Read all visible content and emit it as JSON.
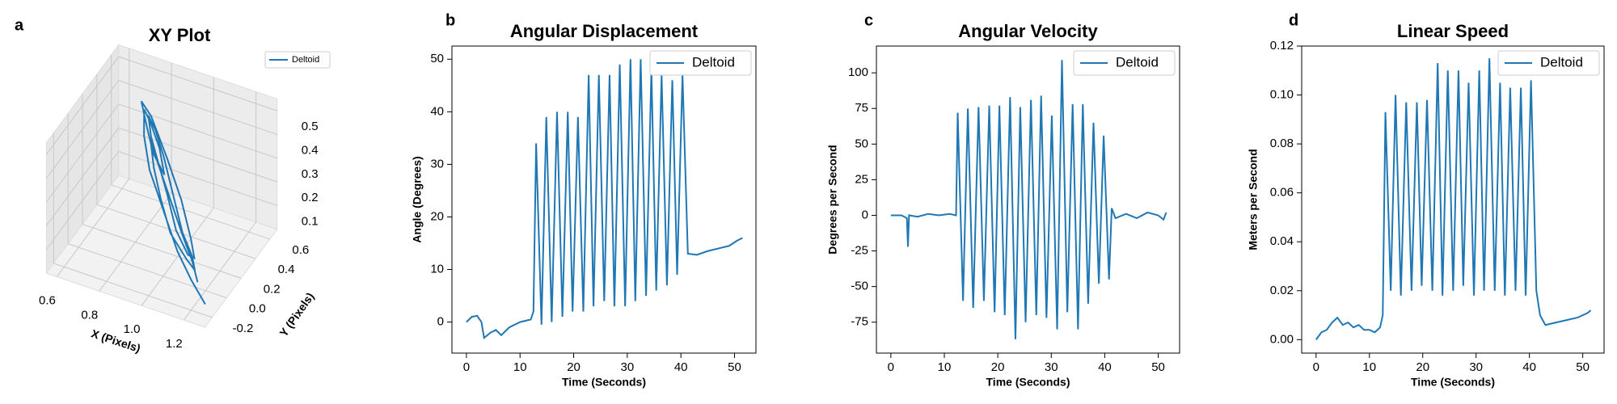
{
  "chart_data": [
    {
      "type": "line3d",
      "panel_label": "a",
      "title": "XY Plot",
      "xlabel": "X (Pixels)",
      "ylabel": "Y (Pixels)",
      "legend": "upper right",
      "series": [
        {
          "name": "Deltoid",
          "color": "#1f77b4",
          "x": [
            1.25,
            1.15,
            1.05,
            0.95,
            0.85,
            0.8,
            0.78,
            0.82,
            0.88,
            0.92,
            0.85,
            0.8,
            0.76,
            0.8,
            0.9,
            1.0,
            1.08,
            1.12,
            1.1,
            1.02,
            0.95,
            0.88,
            0.83,
            0.8,
            0.84,
            0.9,
            0.98,
            1.05,
            1.12,
            1.15,
            1.1,
            1.0,
            0.92,
            0.86,
            0.82,
            0.85,
            0.95,
            1.05,
            1.12,
            1.18
          ],
          "y": [
            -0.15,
            -0.05,
            0.05,
            0.15,
            0.25,
            0.32,
            0.38,
            0.35,
            0.3,
            0.25,
            0.3,
            0.36,
            0.4,
            0.42,
            0.35,
            0.25,
            0.15,
            0.08,
            0.05,
            0.12,
            0.2,
            0.28,
            0.33,
            0.38,
            0.36,
            0.3,
            0.2,
            0.12,
            0.05,
            0.0,
            0.03,
            0.1,
            0.2,
            0.28,
            0.35,
            0.32,
            0.22,
            0.12,
            0.05,
            -0.05
          ],
          "z": [
            0.02,
            0.05,
            0.1,
            0.2,
            0.3,
            0.4,
            0.48,
            0.45,
            0.38,
            0.3,
            0.35,
            0.42,
            0.5,
            0.44,
            0.32,
            0.22,
            0.12,
            0.08,
            0.1,
            0.15,
            0.25,
            0.33,
            0.4,
            0.46,
            0.42,
            0.35,
            0.25,
            0.15,
            0.1,
            0.07,
            0.09,
            0.14,
            0.22,
            0.3,
            0.38,
            0.34,
            0.24,
            0.14,
            0.08,
            0.05
          ]
        }
      ],
      "xlim": [
        0.55,
        1.3
      ],
      "ylim": [
        -0.3,
        0.7
      ],
      "zlim": [
        0,
        0.55
      ],
      "xticks": [
        0.6,
        0.8,
        {
          "value": 1.0,
          "label": "1.0"
        },
        1.2
      ],
      "yticks": [
        -0.2,
        {
          "value": 0.0,
          "label": "0.0"
        },
        0.2,
        0.4,
        0.6
      ],
      "zticks": [
        0.1,
        0.2,
        0.3,
        0.4,
        0.5
      ]
    },
    {
      "type": "line",
      "panel_label": "b",
      "title": "Angular Displacement",
      "xlabel": "Time (Seconds)",
      "ylabel": "Angle (Degrees)",
      "legend": "upper right",
      "x": [
        0,
        1,
        2,
        2.8,
        3.3,
        4.5,
        5.5,
        6.5,
        8,
        10,
        12,
        12.5,
        13.0,
        14.0,
        14.9,
        15.9,
        16.9,
        17.9,
        18.9,
        19.8,
        20.8,
        21.8,
        22.8,
        23.7,
        24.7,
        25.7,
        26.7,
        27.6,
        28.6,
        29.6,
        30.6,
        31.5,
        32.5,
        33.5,
        34.5,
        35.4,
        36.4,
        37.4,
        38.4,
        39.3,
        40.3,
        41.3,
        43,
        45,
        47,
        49,
        50.5,
        51.5
      ],
      "series": [
        {
          "name": "Deltoid",
          "color": "#1f77b4",
          "values": [
            0,
            1,
            1.2,
            0,
            -3,
            -2,
            -1.5,
            -2.5,
            -1,
            0,
            0.5,
            2,
            34,
            -0.5,
            39,
            0,
            40,
            1,
            40,
            2,
            39,
            2,
            47,
            3,
            47,
            4,
            47,
            3,
            49,
            3,
            50,
            4,
            50,
            5,
            48,
            6,
            47,
            7,
            46,
            9,
            47,
            13,
            12.8,
            13.5,
            14,
            14.5,
            15.5,
            16
          ]
        }
      ],
      "xlim": [
        -2.7,
        54.0
      ],
      "ylim": [
        -5.9,
        52.5
      ],
      "xticks": [
        0,
        10,
        20,
        30,
        40,
        50
      ],
      "yticks": [
        0,
        10,
        20,
        30,
        40,
        50
      ]
    },
    {
      "type": "line",
      "panel_label": "c",
      "title": "Angular Velocity",
      "xlabel": "Time (Seconds)",
      "ylabel": "Degrees per Second",
      "legend": "upper right",
      "x": [
        0,
        2,
        3,
        3.2,
        3.4,
        5,
        7,
        9,
        11,
        12.2,
        12.5,
        13.5,
        14.4,
        15.4,
        16.4,
        17.4,
        18.4,
        19.4,
        20.3,
        21.3,
        22.3,
        23.3,
        24.2,
        25.2,
        26.2,
        27.2,
        28.1,
        29.1,
        30.1,
        31.1,
        32.0,
        33.0,
        34.0,
        35.0,
        35.9,
        36.9,
        37.9,
        38.9,
        39.8,
        40.8,
        41.3,
        42,
        44,
        46,
        48,
        50,
        51,
        51.5
      ],
      "series": [
        {
          "name": "Deltoid",
          "color": "#1f77b4",
          "values": [
            0,
            0,
            -2,
            -22,
            0,
            -1,
            1,
            0,
            1,
            0,
            72,
            -60,
            75,
            -65,
            76,
            -60,
            77,
            -68,
            77,
            -70,
            83,
            -87,
            76,
            -75,
            81,
            -70,
            84,
            -72,
            70,
            -80,
            109,
            -68,
            78,
            -80,
            78,
            -62,
            65,
            -48,
            56,
            -45,
            5,
            -2,
            1,
            -2,
            2,
            0,
            -3,
            2
          ]
        }
      ],
      "xlim": [
        -2.7,
        54.0
      ],
      "ylim": [
        -96.7,
        118.8
      ],
      "xticks": [
        0,
        10,
        20,
        30,
        40,
        50
      ],
      "yticks": [
        -75,
        -50,
        -25,
        0,
        25,
        50,
        75,
        100
      ]
    },
    {
      "type": "line",
      "panel_label": "d",
      "title": "Linear Speed",
      "xlabel": "Time (Seconds)",
      "ylabel": "Meters per Second",
      "legend": "upper right",
      "x": [
        0,
        1,
        2,
        3,
        4,
        5,
        6,
        7,
        8,
        9,
        10,
        11,
        12,
        12.5,
        13.0,
        14.0,
        14.9,
        15.9,
        16.9,
        17.9,
        18.9,
        19.8,
        20.8,
        21.8,
        22.8,
        23.7,
        24.7,
        25.7,
        26.7,
        27.6,
        28.6,
        29.6,
        30.6,
        31.5,
        32.5,
        33.5,
        34.5,
        35.4,
        36.4,
        37.4,
        38.4,
        39.3,
        40.3,
        41.3,
        42,
        43,
        45,
        47,
        49,
        51,
        51.5
      ],
      "series": [
        {
          "name": "Deltoid",
          "color": "#1f77b4",
          "values": [
            0,
            0.003,
            0.004,
            0.007,
            0.009,
            0.006,
            0.007,
            0.005,
            0.006,
            0.004,
            0.004,
            0.003,
            0.005,
            0.01,
            0.093,
            0.02,
            0.1,
            0.018,
            0.097,
            0.02,
            0.097,
            0.022,
            0.098,
            0.02,
            0.113,
            0.018,
            0.11,
            0.02,
            0.11,
            0.022,
            0.105,
            0.018,
            0.11,
            0.02,
            0.115,
            0.02,
            0.105,
            0.018,
            0.103,
            0.02,
            0.103,
            0.018,
            0.106,
            0.02,
            0.01,
            0.006,
            0.007,
            0.008,
            0.009,
            0.011,
            0.012
          ]
        }
      ],
      "xlim": [
        -2.7,
        54.0
      ],
      "ylim": [
        -0.0055,
        0.12
      ],
      "xticks": [
        0,
        10,
        20,
        30,
        40,
        50
      ],
      "yticks": [
        {
          "value": 0,
          "label": "0.00"
        },
        {
          "value": 0.02,
          "label": "0.02"
        },
        {
          "value": 0.04,
          "label": "0.04"
        },
        {
          "value": 0.06,
          "label": "0.06"
        },
        {
          "value": 0.08,
          "label": "0.08"
        },
        {
          "value": 0.1,
          "label": "0.10"
        },
        {
          "value": 0.12,
          "label": "0.12"
        }
      ]
    }
  ]
}
